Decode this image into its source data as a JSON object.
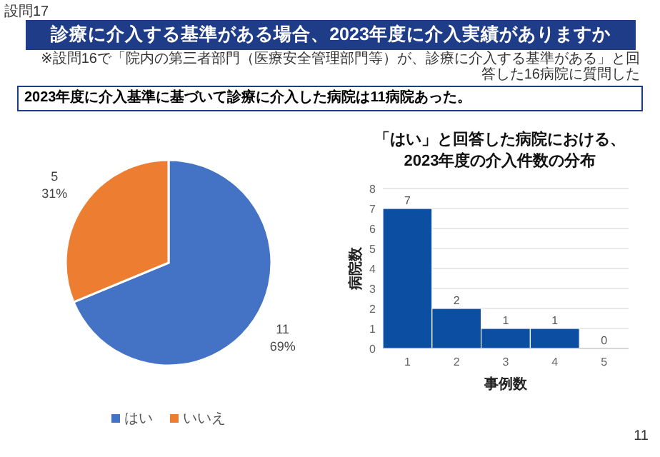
{
  "chart_data": [
    {
      "type": "pie",
      "title": "診療に介入する基準がある場合、2023年度に介入実績がありますか",
      "subtitle": "※設問16で「院内の第三者部門（医療安全管理部門等）が、診療に介入する基準がある」と回答した16病院に質問した",
      "annotations": [
        "設問17",
        "2023年度に介入基準に基づいて診療に介入した病院は11病院あった。",
        "11"
      ],
      "categories": [
        "はい",
        "いいえ"
      ],
      "values": [
        11,
        5
      ],
      "colors": [
        "#4472c4",
        "#ed7d31"
      ],
      "value_labels": [
        "11\n69%",
        "5\n31%"
      ],
      "legend": "bottom"
    },
    {
      "type": "bar",
      "title": "「はい」と回答した病院における、\n2023年度の介入件数の分布",
      "xlabel": "事例数",
      "ylabel": "病院数",
      "categories": [
        "1",
        "2",
        "3",
        "4",
        "5"
      ],
      "values": [
        7,
        2,
        1,
        1,
        0
      ],
      "color": "#0b4ea2",
      "ylim": [
        0,
        8
      ],
      "yticks": [
        0,
        1,
        2,
        3,
        4,
        5,
        6,
        7,
        8
      ],
      "grid": "y",
      "data_labels": true
    }
  ]
}
